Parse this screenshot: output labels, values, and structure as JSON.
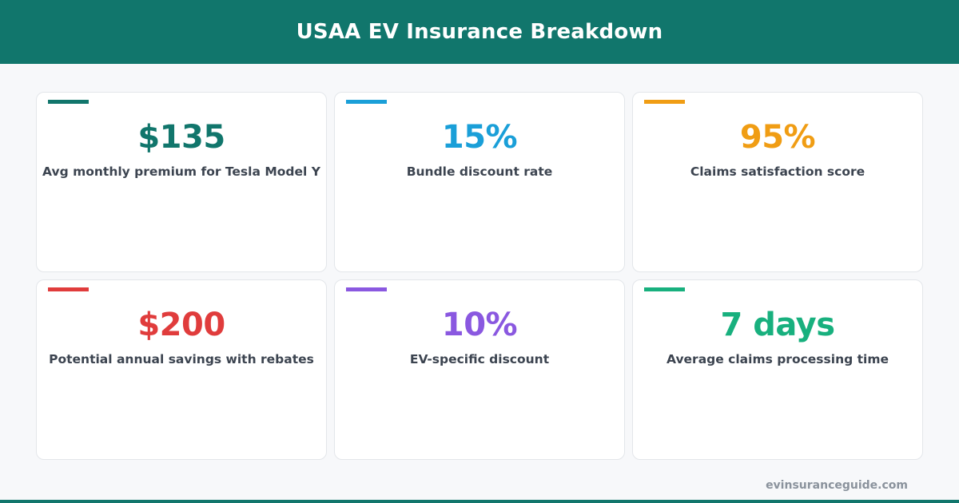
{
  "header": {
    "title": "USAA EV Insurance Breakdown"
  },
  "colors": {
    "brand": "#11766c",
    "background": "#f7f8fa",
    "label_text": "#3c4450",
    "footer_text": "#8a929c"
  },
  "cards": [
    {
      "value": "$135",
      "label": "Avg monthly premium for Tesla Model Y",
      "color": "#11766c"
    },
    {
      "value": "15%",
      "label": "Bundle discount rate",
      "color": "#1a9fd8"
    },
    {
      "value": "95%",
      "label": "Claims satisfaction score",
      "color": "#f09d14"
    },
    {
      "value": "$200",
      "label": "Potential annual savings with rebates",
      "color": "#e03c3c"
    },
    {
      "value": "10%",
      "label": "EV-specific discount",
      "color": "#8a58e0"
    },
    {
      "value": "7 days",
      "label": "Average claims processing time",
      "color": "#18b07e"
    }
  ],
  "footer": {
    "site": "evinsuranceguide.com"
  }
}
